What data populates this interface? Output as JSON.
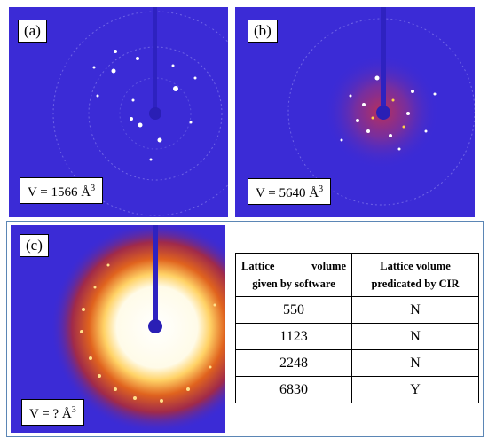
{
  "panels": {
    "a": {
      "label": "(a)",
      "volume_prefix": "V = 1566 Å",
      "volume_exp": "3"
    },
    "b": {
      "label": "(b)",
      "volume_prefix": "V = 5640 Å",
      "volume_exp": "3"
    },
    "c": {
      "label": "(c)",
      "volume_prefix": "V = ? Å",
      "volume_exp": "3"
    }
  },
  "table": {
    "header1_line1_left": "Lattice",
    "header1_line1_right": "volume",
    "header1_line2": "given by software",
    "header2_line1": "Lattice volume",
    "header2_line2": "predicated by CIR",
    "rows": [
      {
        "volume": "550",
        "predicted": "N"
      },
      {
        "volume": "1123",
        "predicted": "N"
      },
      {
        "volume": "2248",
        "predicted": "N"
      },
      {
        "volume": "6830",
        "predicted": "Y"
      }
    ]
  },
  "colors": {
    "background_blue": "#3b2bd6",
    "frame": "#5b86b5"
  }
}
